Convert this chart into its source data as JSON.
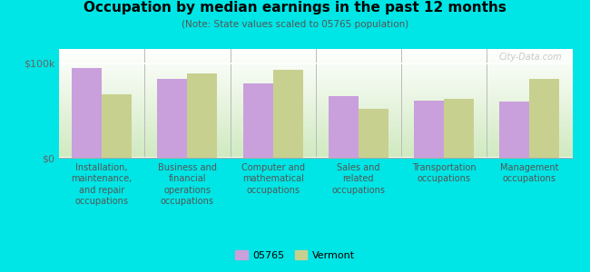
{
  "title": "Occupation by median earnings in the past 12 months",
  "subtitle": "(Note: State values scaled to 05765 population)",
  "categories": [
    "Installation,\nmaintenance,\nand repair\noccupations",
    "Business and\nfinancial\noperations\noccupations",
    "Computer and\nmathematical\noccupations",
    "Sales and\nrelated\noccupations",
    "Transportation\noccupations",
    "Management\noccupations"
  ],
  "values_05765": [
    95000,
    83000,
    79000,
    65000,
    60000,
    59000
  ],
  "values_vermont": [
    67000,
    89000,
    93000,
    52000,
    62000,
    83000
  ],
  "color_05765": "#c9a0dc",
  "color_vermont": "#c8d090",
  "yticks": [
    0,
    100000
  ],
  "ytick_labels": [
    "$0",
    "$100k"
  ],
  "ylim": [
    0,
    115000
  ],
  "grad_top": "#ffffff",
  "grad_bottom": "#d0eac0",
  "outer_background": "#00e5e5",
  "bar_width": 0.35,
  "legend_labels": [
    "05765",
    "Vermont"
  ],
  "watermark": "City-Data.com"
}
